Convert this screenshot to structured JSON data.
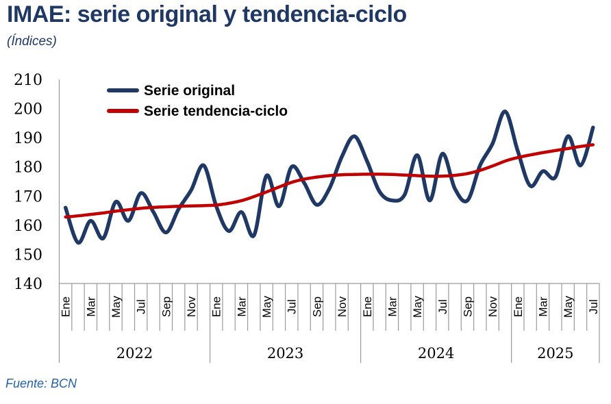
{
  "header": {
    "title": "IMAE: serie original y tendencia-ciclo",
    "subtitle": "(Índices)"
  },
  "footer": {
    "source": "Fuente: BCN"
  },
  "legend": {
    "items": [
      {
        "label": "Serie original",
        "color": "#1F3864"
      },
      {
        "label": "Serie tendencia-ciclo",
        "color": "#C00000"
      }
    ],
    "position": "inside-top-left"
  },
  "colors": {
    "title_text": "#1F3864",
    "axis_line": "#999999",
    "tick_text": "#000000",
    "source_text": "#2361A9",
    "serie_original": "#1F3864",
    "serie_tendencia": "#C00000"
  },
  "chart_data": {
    "type": "line",
    "title": "IMAE: serie original y tendencia-ciclo",
    "subtitle": "(Índices)",
    "ylim": [
      140,
      210
    ],
    "y_ticks": [
      140,
      150,
      160,
      170,
      180,
      190,
      200,
      210
    ],
    "month_tick_labels": [
      "Ene",
      "Mar",
      "May",
      "Jul",
      "Sep",
      "Nov"
    ],
    "years": [
      {
        "label": "2022",
        "n_months": 12
      },
      {
        "label": "2023",
        "n_months": 12
      },
      {
        "label": "2024",
        "n_months": 12
      },
      {
        "label": "2025",
        "n_months": 7
      }
    ],
    "grid": false,
    "legend_position": "inside-top-left",
    "series": [
      {
        "name": "Serie original",
        "color": "#1F3864",
        "smooth": true,
        "values": [
          166,
          154,
          161.5,
          155.5,
          168,
          161.5,
          171,
          164.5,
          157.5,
          165.5,
          172,
          180.5,
          166.5,
          158,
          164.5,
          156.5,
          177,
          166.5,
          180,
          174.5,
          167,
          172.5,
          183.5,
          190.5,
          182,
          171.5,
          168.5,
          170.5,
          184,
          168.5,
          184.5,
          172.5,
          168.5,
          180.5,
          188,
          199,
          185.5,
          173.5,
          178.5,
          176.5,
          190.5,
          180.5,
          193.5
        ]
      },
      {
        "name": "Serie tendencia-ciclo",
        "color": "#C00000",
        "smooth": true,
        "values": [
          162.8,
          163.2,
          163.7,
          164.2,
          164.8,
          165.3,
          165.8,
          166.1,
          166.3,
          166.5,
          166.6,
          166.7,
          166.9,
          167.5,
          168.4,
          169.8,
          171.4,
          173.1,
          174.7,
          175.8,
          176.5,
          177,
          177.3,
          177.4,
          177.5,
          177.5,
          177.4,
          177.2,
          177,
          176.8,
          176.8,
          177.1,
          177.7,
          178.8,
          180.3,
          182,
          183.2,
          184.1,
          184.9,
          185.6,
          186.3,
          187,
          187.6
        ]
      }
    ]
  }
}
